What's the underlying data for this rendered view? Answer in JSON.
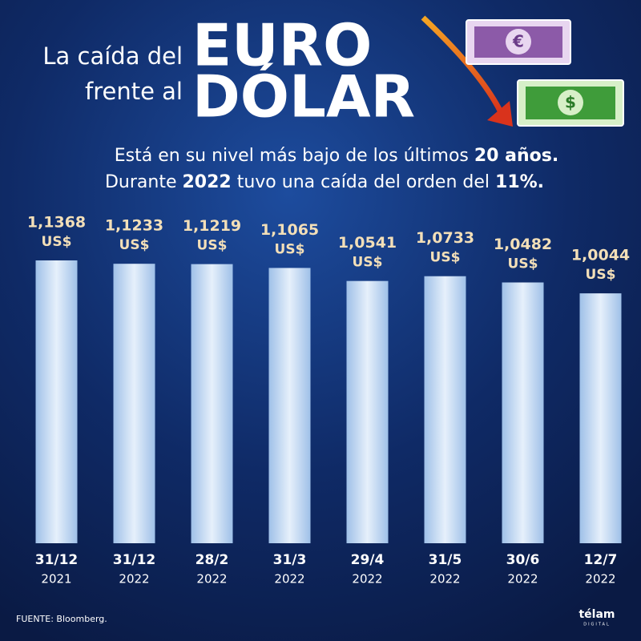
{
  "chart_data": {
    "type": "bar",
    "title_small": [
      "La caída del",
      "frente al"
    ],
    "title_big": [
      "EURO",
      "DÓLAR"
    ],
    "icons": [
      "€",
      "$"
    ],
    "subtitle": [
      [
        "Está en su nivel más bajo de los últimos ",
        "20 años."
      ],
      [
        "Durante ",
        "2022",
        " tuvo una caída del orden del ",
        "11%."
      ]
    ],
    "categories": [
      "31/12",
      "31/12",
      "28/2",
      "31/3",
      "29/4",
      "31/5",
      "30/6",
      "12/7"
    ],
    "category_years": [
      "2021",
      "2022",
      "2022",
      "2022",
      "2022",
      "2022",
      "2022",
      "2022"
    ],
    "values": [
      1.1368,
      1.1233,
      1.1219,
      1.1065,
      1.0541,
      1.0733,
      1.0482,
      1.0044
    ],
    "value_labels": [
      "1,1368",
      "1,1233",
      "1,1219",
      "1,1065",
      "1,0541",
      "1,0733",
      "1,0482",
      "1,0044"
    ],
    "unit": "US$",
    "color": "#bcd6f2",
    "source": "FUENTE: Bloomberg.",
    "logo": [
      "télam",
      "DIGITAL"
    ]
  }
}
